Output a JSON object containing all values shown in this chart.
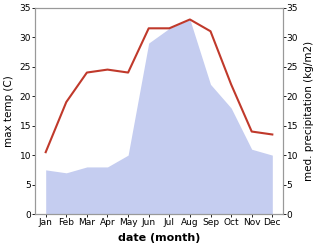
{
  "months": [
    "Jan",
    "Feb",
    "Mar",
    "Apr",
    "May",
    "Jun",
    "Jul",
    "Aug",
    "Sep",
    "Oct",
    "Nov",
    "Dec"
  ],
  "temperature": [
    10.5,
    19.0,
    24.0,
    24.5,
    24.0,
    31.5,
    31.5,
    33.0,
    31.0,
    22.0,
    14.0,
    13.5
  ],
  "precipitation": [
    7.5,
    7.0,
    8.0,
    8.0,
    10.0,
    29.0,
    31.5,
    33.0,
    22.0,
    18.0,
    11.0,
    10.0
  ],
  "temp_color": "#c0392b",
  "precip_fill_color": "#c5cdf0",
  "ylim": [
    0,
    35
  ],
  "yticks": [
    0,
    5,
    10,
    15,
    20,
    25,
    30,
    35
  ],
  "ylabel_left": "max temp (C)",
  "ylabel_right": "med. precipitation (kg/m2)",
  "xlabel": "date (month)",
  "bg_color": "#ffffff",
  "spine_color": "#999999",
  "tick_fontsize": 6.5,
  "label_fontsize": 7.5,
  "xlabel_fontsize": 8
}
